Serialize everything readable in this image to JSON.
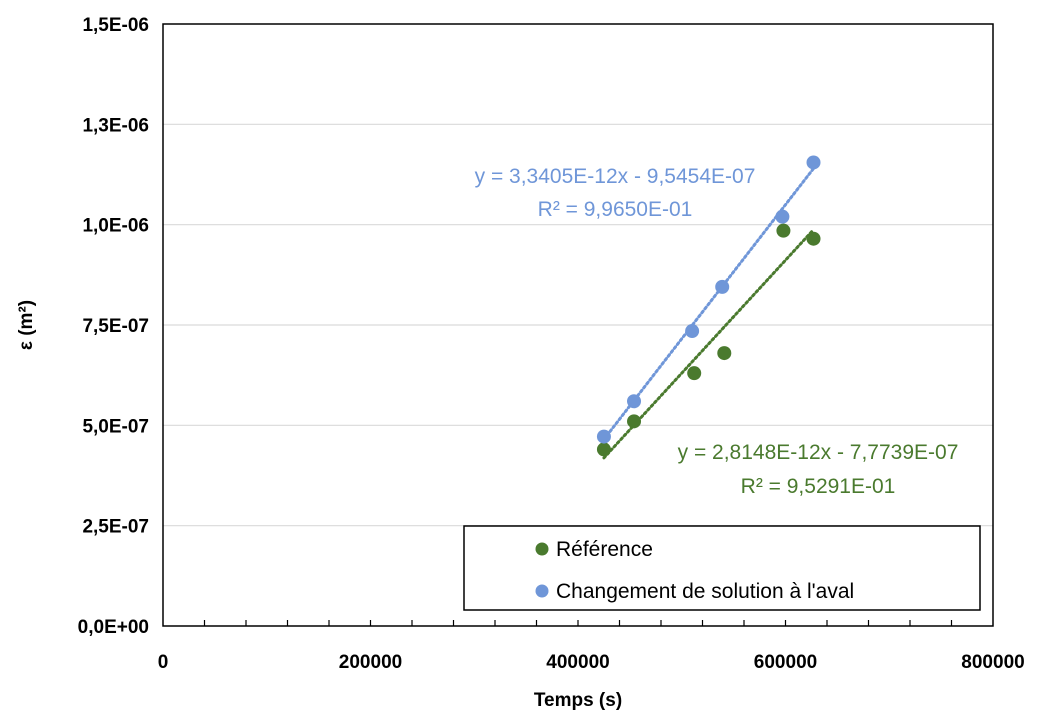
{
  "chart_data": {
    "type": "scatter",
    "title": "",
    "xlabel": "Temps (s)",
    "ylabel": "ε (m²)",
    "xlim": [
      0,
      800000
    ],
    "ylim": [
      0,
      1.5e-06
    ],
    "x_ticks": [
      0,
      200000,
      400000,
      600000,
      800000
    ],
    "x_tick_labels": [
      "0",
      "200000",
      "400000",
      "600000",
      "800000"
    ],
    "y_ticks": [
      0,
      2.5e-07,
      5e-07,
      7.5e-07,
      1e-06,
      1.25e-06,
      1.5e-06
    ],
    "y_tick_labels": [
      "0,0E+00",
      "2,5E-07",
      "5,0E-07",
      "7,5E-07",
      "1,0E-06",
      "1,3E-06",
      "1,5E-06"
    ],
    "grid": "horizontal",
    "legend_position": "bottom-right",
    "series": [
      {
        "name": "Référence",
        "color": "#4a7a2e",
        "x": [
          425000,
          454000,
          512000,
          541000,
          598000,
          627000
        ],
        "y": [
          4.4e-07,
          5.1e-07,
          6.3e-07,
          6.8e-07,
          9.85e-07,
          9.65e-07
        ],
        "trendline": {
          "style": "dotted",
          "slope": 2.8148e-12,
          "intercept": -7.7739e-07,
          "x_range": [
            425000,
            627000
          ],
          "equation": "y = 2,8148E-12x - 7,7739E-07",
          "r2": "R² = 9,5291E-01"
        }
      },
      {
        "name": "Changement de solution à l'aval",
        "color": "#6f96d8",
        "x": [
          425000,
          454000,
          510000,
          539000,
          597000,
          627000
        ],
        "y": [
          4.72e-07,
          5.6e-07,
          7.35e-07,
          8.45e-07,
          1.02e-06,
          1.155e-06
        ],
        "trendline": {
          "style": "dotted",
          "slope": 3.3405e-12,
          "intercept": -9.5454e-07,
          "x_range": [
            425000,
            627000
          ],
          "equation": "y = 3,3405E-12x - 9,5454E-07",
          "r2": "R² = 9,9650E-01"
        }
      }
    ]
  }
}
